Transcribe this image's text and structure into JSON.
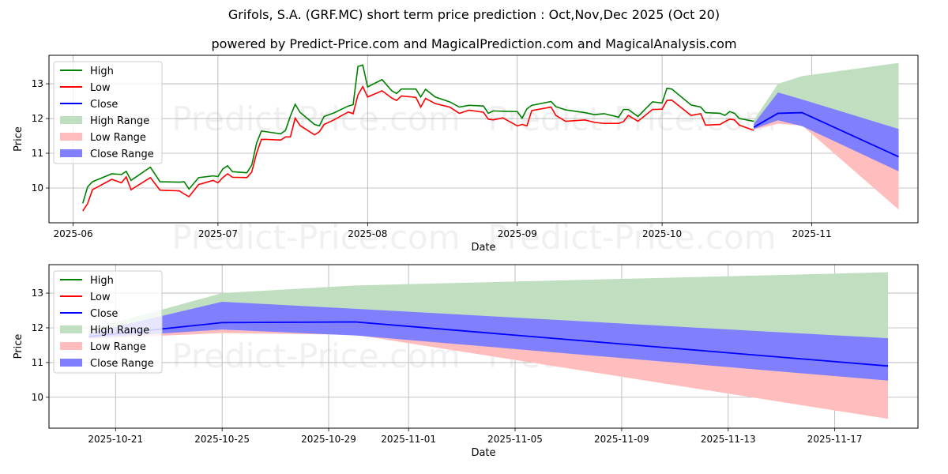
{
  "title": "Grifols, S.A. (GRF.MC) short term price prediction : Oct,Nov,Dec 2025 (Oct 20)",
  "subtitle": "powered by Predict-Price.com and MagicalPrediction.com and MagicalAnalysis.com",
  "watermark": "Predict-Price.com",
  "colors": {
    "high": "#008000",
    "low": "#ff0000",
    "close": "#0000ff",
    "high_range": "#c0dfc0",
    "low_range": "#ffbdbd",
    "close_range": "#8080ff"
  },
  "chart_data": [
    {
      "type": "line",
      "panel": "history-and-forecast",
      "xlabel": "Date",
      "ylabel": "Price",
      "xlim": [
        "2025-05-27",
        "2025-11-23"
      ],
      "ylim": [
        9.0,
        13.82
      ],
      "grid": true,
      "legend_placement": "top-left",
      "legend": [
        "High",
        "Low",
        "Close",
        "High Range",
        "Low Range",
        "Close Range"
      ],
      "xticks": [
        {
          "date": "2025-06-01",
          "label": "2025-06"
        },
        {
          "date": "2025-07-01",
          "label": "2025-07"
        },
        {
          "date": "2025-08-01",
          "label": "2025-08"
        },
        {
          "date": "2025-09-01",
          "label": "2025-09"
        },
        {
          "date": "2025-10-01",
          "label": "2025-10"
        },
        {
          "date": "2025-11-01",
          "label": "2025-11"
        }
      ],
      "yticks": [
        10,
        11,
        12,
        13
      ]
    },
    {
      "type": "line",
      "panel": "forecast-detail",
      "xlabel": "Date",
      "ylabel": "Price",
      "xlim": [
        "2025-10-18T12:00",
        "2025-11-20T03:00"
      ],
      "ylim": [
        9.11,
        13.82
      ],
      "grid": true,
      "legend_placement": "top-left",
      "legend": [
        "High",
        "Low",
        "Close",
        "High Range",
        "Low Range",
        "Close Range"
      ],
      "xticks": [
        {
          "date": "2025-10-21",
          "label": "2025-10-21"
        },
        {
          "date": "2025-10-25",
          "label": "2025-10-25"
        },
        {
          "date": "2025-10-29",
          "label": "2025-10-29"
        },
        {
          "date": "2025-11-01",
          "label": "2025-11-01"
        },
        {
          "date": "2025-11-05",
          "label": "2025-11-05"
        },
        {
          "date": "2025-11-09",
          "label": "2025-11-09"
        },
        {
          "date": "2025-11-13",
          "label": "2025-11-13"
        },
        {
          "date": "2025-11-17",
          "label": "2025-11-17"
        }
      ],
      "yticks": [
        10,
        11,
        12,
        13
      ]
    }
  ],
  "history": {
    "dates": [
      "2025-06-03",
      "2025-06-04",
      "2025-06-05",
      "2025-06-09",
      "2025-06-11",
      "2025-06-12",
      "2025-06-13",
      "2025-06-17",
      "2025-06-19",
      "2025-06-23",
      "2025-06-24",
      "2025-06-25",
      "2025-06-27",
      "2025-06-30",
      "2025-07-01",
      "2025-07-02",
      "2025-07-03",
      "2025-07-04",
      "2025-07-07",
      "2025-07-08",
      "2025-07-09",
      "2025-07-10",
      "2025-07-11",
      "2025-07-14",
      "2025-07-15",
      "2025-07-16",
      "2025-07-17",
      "2025-07-18",
      "2025-07-21",
      "2025-07-22",
      "2025-07-23",
      "2025-07-25",
      "2025-07-28",
      "2025-07-29",
      "2025-07-30",
      "2025-07-31",
      "2025-08-01",
      "2025-08-04",
      "2025-08-06",
      "2025-08-07",
      "2025-08-08",
      "2025-08-11",
      "2025-08-12",
      "2025-08-13",
      "2025-08-15",
      "2025-08-18",
      "2025-08-20",
      "2025-08-22",
      "2025-08-25",
      "2025-08-26",
      "2025-08-27",
      "2025-08-29",
      "2025-09-01",
      "2025-09-02",
      "2025-09-03",
      "2025-09-04",
      "2025-09-08",
      "2025-09-09",
      "2025-09-11",
      "2025-09-15",
      "2025-09-17",
      "2025-09-19",
      "2025-09-22",
      "2025-09-23",
      "2025-09-24",
      "2025-09-26",
      "2025-09-29",
      "2025-10-01",
      "2025-10-02",
      "2025-10-03",
      "2025-10-07",
      "2025-10-09",
      "2025-10-10",
      "2025-10-13",
      "2025-10-14",
      "2025-10-15",
      "2025-10-16",
      "2025-10-17",
      "2025-10-20"
    ],
    "high": [
      9.56,
      10.03,
      10.18,
      10.41,
      10.39,
      10.48,
      10.22,
      10.6,
      10.18,
      10.17,
      10.18,
      9.97,
      10.3,
      10.35,
      10.33,
      10.55,
      10.64,
      10.47,
      10.44,
      10.66,
      11.29,
      11.64,
      11.62,
      11.56,
      11.66,
      12.07,
      12.41,
      12.18,
      11.83,
      11.79,
      12.06,
      12.16,
      12.36,
      12.4,
      13.5,
      13.54,
      12.91,
      13.12,
      12.8,
      12.72,
      12.85,
      12.85,
      12.62,
      12.84,
      12.62,
      12.48,
      12.33,
      12.38,
      12.36,
      12.15,
      12.22,
      12.21,
      12.2,
      12.01,
      12.28,
      12.38,
      12.49,
      12.34,
      12.25,
      12.17,
      12.11,
      12.14,
      12.04,
      12.26,
      12.26,
      12.06,
      12.48,
      12.45,
      12.87,
      12.85,
      12.39,
      12.33,
      12.17,
      12.15,
      12.09,
      12.2,
      12.15,
      12.0,
      11.92
    ],
    "low": [
      9.34,
      9.55,
      9.95,
      10.25,
      10.15,
      10.32,
      9.95,
      10.3,
      9.94,
      9.92,
      9.83,
      9.75,
      10.1,
      10.22,
      10.15,
      10.3,
      10.41,
      10.31,
      10.3,
      10.46,
      11.0,
      11.4,
      11.4,
      11.38,
      11.47,
      11.47,
      12.01,
      11.8,
      11.53,
      11.62,
      11.83,
      11.96,
      12.19,
      12.14,
      12.68,
      12.92,
      12.62,
      12.8,
      12.59,
      12.52,
      12.65,
      12.61,
      12.33,
      12.58,
      12.43,
      12.33,
      12.15,
      12.24,
      12.18,
      11.98,
      11.96,
      12.02,
      11.79,
      11.83,
      11.79,
      12.23,
      12.33,
      12.09,
      11.92,
      11.96,
      11.89,
      11.86,
      11.86,
      11.91,
      12.09,
      11.92,
      12.26,
      12.27,
      12.52,
      12.53,
      12.09,
      12.14,
      11.81,
      11.83,
      11.91,
      11.98,
      11.96,
      11.81,
      11.66
    ]
  },
  "forecast": {
    "dates": [
      "2025-10-20",
      "2025-10-25",
      "2025-10-30",
      "2025-11-19"
    ],
    "close": [
      11.75,
      12.15,
      12.17,
      10.9
    ],
    "high_range": {
      "lower": [
        11.85,
        12.3,
        12.35,
        11.7
      ],
      "upper": [
        11.95,
        13.0,
        13.22,
        13.6
      ]
    },
    "low_range": {
      "lower": [
        11.68,
        11.85,
        11.8,
        9.38
      ],
      "upper": [
        11.8,
        12.05,
        12.0,
        11.0
      ]
    },
    "close_range": {
      "lower": [
        11.7,
        11.95,
        11.78,
        10.48
      ],
      "upper": [
        11.85,
        12.75,
        12.55,
        11.7
      ]
    }
  }
}
